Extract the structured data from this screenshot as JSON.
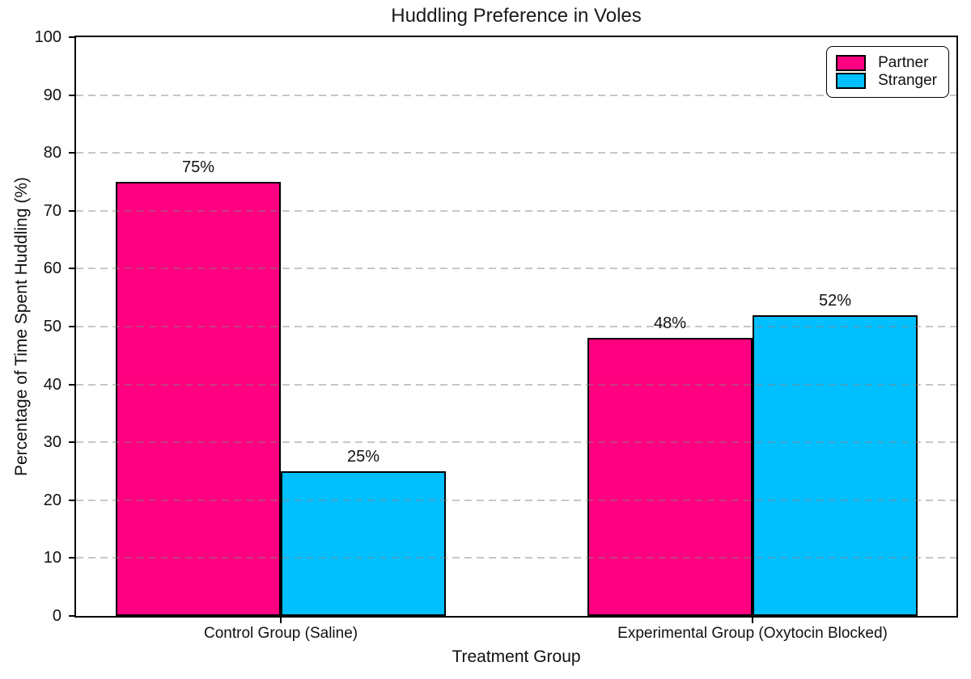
{
  "chart_data": {
    "type": "bar",
    "title": "Huddling Preference in Voles",
    "xlabel": "Treatment Group",
    "ylabel": "Percentage of Time Spent Huddling (%)",
    "categories": [
      "Control Group (Saline)",
      "Experimental Group (Oxytocin Blocked)"
    ],
    "series": [
      {
        "name": "Partner",
        "color": "#FF0080",
        "values": [
          75,
          48
        ],
        "value_labels": [
          "75%",
          "48%"
        ]
      },
      {
        "name": "Stranger",
        "color": "#00BFFF",
        "values": [
          25,
          52
        ],
        "value_labels": [
          "25%",
          "52%"
        ]
      }
    ],
    "ylim": [
      0,
      100
    ],
    "yticks": [
      0,
      10,
      20,
      30,
      40,
      50,
      60,
      70,
      80,
      90,
      100
    ],
    "ytick_labels": [
      "0",
      "10",
      "20",
      "30",
      "40",
      "50",
      "60",
      "70",
      "80",
      "90",
      "100"
    ],
    "grid": {
      "axis": "y",
      "style": "dashed",
      "color": "#c9c9c9",
      "on": true
    },
    "legend": {
      "position": "upper right",
      "entries": [
        "Partner",
        "Stranger"
      ]
    },
    "bar_edge_color": "#000000",
    "background_color": "#ffffff"
  }
}
